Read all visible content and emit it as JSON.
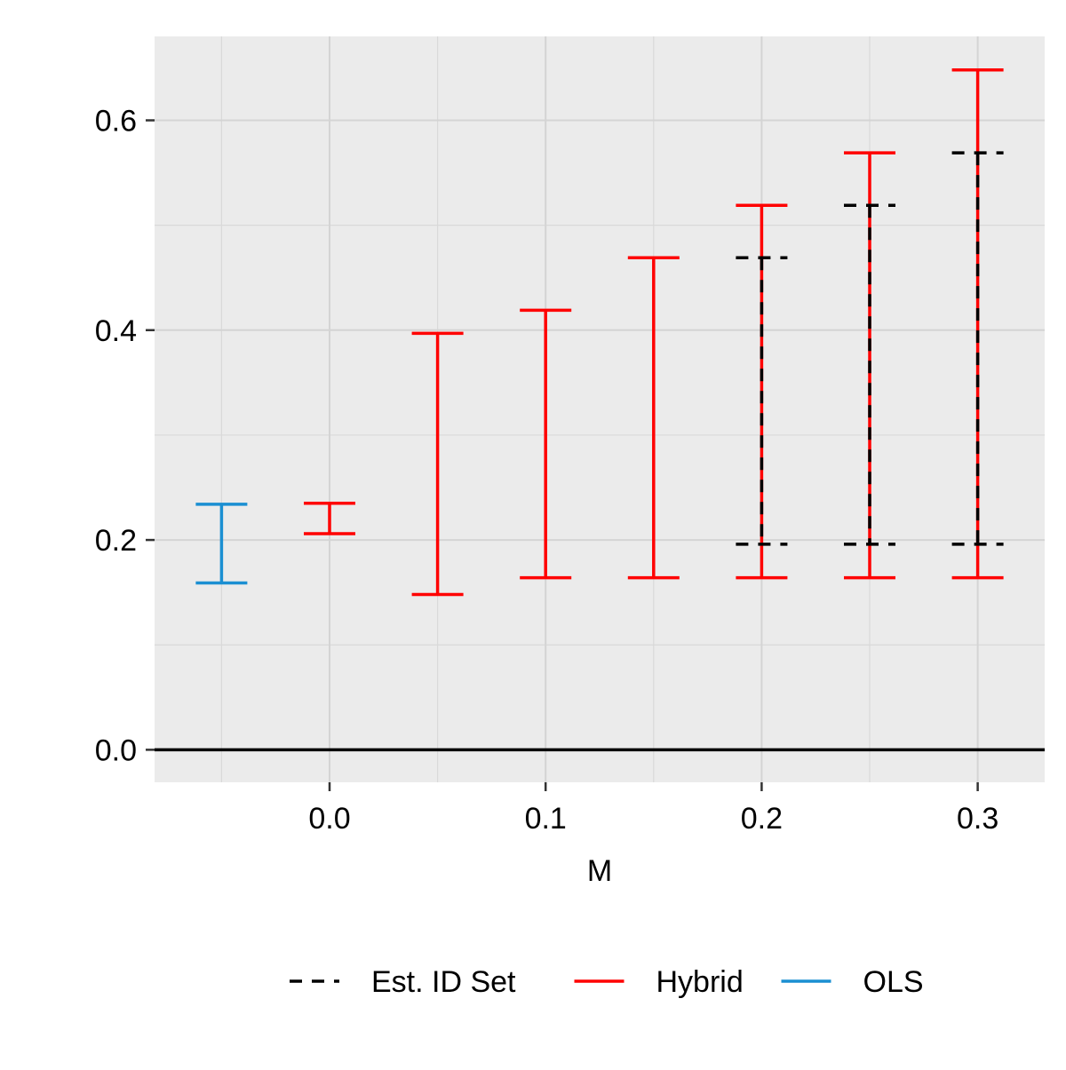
{
  "chart_data": {
    "type": "errorbar",
    "title": "",
    "xlabel": "M",
    "ylabel": "",
    "x_ticks": [
      0.0,
      0.1,
      0.2,
      0.3
    ],
    "x_tick_labels": [
      "0.0",
      "0.1",
      "0.2",
      "0.3"
    ],
    "y_ticks": [
      0.0,
      0.2,
      0.4,
      0.6
    ],
    "y_tick_labels": [
      "0.0",
      "0.2",
      "0.4",
      "0.6"
    ],
    "xlim": [
      -0.081,
      0.331
    ],
    "ylim": [
      -0.031,
      0.68
    ],
    "grid": true,
    "reference_line_y": 0.0,
    "legend_position": "bottom",
    "series": [
      {
        "name": "Est. ID Set",
        "color": "#000000",
        "linestyle": "dashed",
        "points": [
          {
            "x": 0.2,
            "lower": 0.196,
            "upper": 0.469
          },
          {
            "x": 0.25,
            "lower": 0.196,
            "upper": 0.519
          },
          {
            "x": 0.3,
            "lower": 0.196,
            "upper": 0.569
          }
        ]
      },
      {
        "name": "Hybrid",
        "color": "#ff0000",
        "linestyle": "solid",
        "points": [
          {
            "x": 0.0,
            "lower": 0.206,
            "upper": 0.235
          },
          {
            "x": 0.05,
            "lower": 0.148,
            "upper": 0.397
          },
          {
            "x": 0.1,
            "lower": 0.164,
            "upper": 0.419
          },
          {
            "x": 0.15,
            "lower": 0.164,
            "upper": 0.469
          },
          {
            "x": 0.2,
            "lower": 0.164,
            "upper": 0.519
          },
          {
            "x": 0.25,
            "lower": 0.164,
            "upper": 0.569
          },
          {
            "x": 0.3,
            "lower": 0.164,
            "upper": 0.648
          }
        ]
      },
      {
        "name": "OLS",
        "color": "#1b8fd2",
        "linestyle": "solid",
        "points": [
          {
            "x": -0.05,
            "lower": 0.159,
            "upper": 0.234
          }
        ]
      }
    ]
  }
}
